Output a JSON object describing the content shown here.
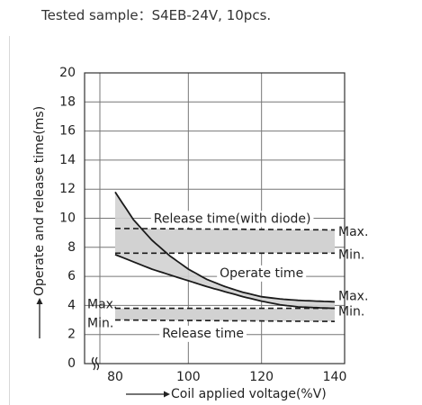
{
  "caption": "Tested sample：S4EB-24V, 10pcs.",
  "colors": {
    "band": "#d2d2d2",
    "line": "#1a1a1a",
    "grid": "#777777"
  },
  "chart_data": {
    "type": "line",
    "title": "",
    "xlabel": "Coil applied voltage(%V)",
    "ylabel": "Operate and release time(ms)",
    "xlim": [
      80,
      140
    ],
    "ylim": [
      0,
      20
    ],
    "x_axis_break": true,
    "x_ticks": [
      80,
      100,
      120,
      140
    ],
    "y_ticks": [
      0,
      2,
      4,
      6,
      8,
      10,
      12,
      14,
      16,
      18,
      20
    ],
    "grid": true,
    "series": [
      {
        "name": "Operate time",
        "x": [
          80,
          85,
          90,
          95,
          100,
          105,
          110,
          115,
          120,
          125,
          130,
          135,
          140
        ],
        "max": [
          11.8,
          9.9,
          8.5,
          7.4,
          6.5,
          5.8,
          5.3,
          4.9,
          4.6,
          4.45,
          4.35,
          4.3,
          4.25
        ],
        "min": [
          7.5,
          7.0,
          6.5,
          6.1,
          5.7,
          5.3,
          4.95,
          4.6,
          4.3,
          4.05,
          3.9,
          3.85,
          3.8
        ]
      },
      {
        "name": "Release time(with diode)",
        "x": [
          80,
          140
        ],
        "max": [
          9.3,
          9.2
        ],
        "min": [
          7.6,
          7.6
        ]
      },
      {
        "name": "Release time",
        "x": [
          80,
          140
        ],
        "max": [
          3.8,
          3.8
        ],
        "min": [
          3.0,
          2.9
        ]
      }
    ],
    "annotations": [
      {
        "text": "Max.",
        "x": 140,
        "y": 9.2,
        "side": "right"
      },
      {
        "text": "Min.",
        "x": 140,
        "y": 7.6,
        "side": "right"
      },
      {
        "text": "Max.",
        "x": 140,
        "y": 4.5,
        "side": "right"
      },
      {
        "text": "Min.",
        "x": 140,
        "y": 3.6,
        "side": "right"
      },
      {
        "text": "Max.",
        "x": 80,
        "y": 3.8,
        "side": "left"
      },
      {
        "text": "Min.",
        "x": 80,
        "y": 2.9,
        "side": "left"
      }
    ]
  }
}
